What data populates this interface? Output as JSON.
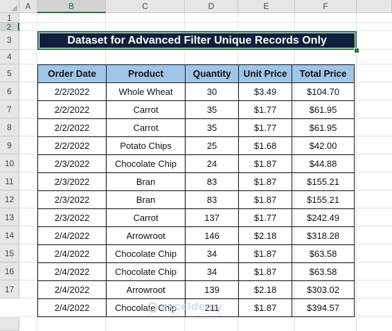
{
  "sheet": {
    "columns": [
      "A",
      "B",
      "C",
      "D",
      "E",
      "F"
    ],
    "selected_column": "B",
    "rows": [
      "1",
      "2",
      "3",
      "4",
      "5",
      "6",
      "7",
      "8",
      "9",
      "10",
      "11",
      "12",
      "13",
      "14",
      "15",
      "16",
      "17"
    ],
    "selected_row": "2"
  },
  "title": "Dataset for Advanced Filter Unique Records Only",
  "table": {
    "headers": [
      "Order Date",
      "Product",
      "Quantity",
      "Unit Price",
      "Total Price"
    ],
    "rows": [
      [
        "2/2/2022",
        "Whole Wheat",
        "30",
        "$3.49",
        "$104.70"
      ],
      [
        "2/2/2022",
        "Carrot",
        "35",
        "$1.77",
        "$61.95"
      ],
      [
        "2/2/2022",
        "Carrot",
        "35",
        "$1.77",
        "$61.95"
      ],
      [
        "2/2/2022",
        "Potato Chips",
        "25",
        "$1.68",
        "$42.00"
      ],
      [
        "2/3/2022",
        "Chocolate Chip",
        "24",
        "$1.87",
        "$44.88"
      ],
      [
        "2/3/2022",
        "Bran",
        "83",
        "$1.87",
        "$155.21"
      ],
      [
        "2/3/2022",
        "Bran",
        "83",
        "$1.87",
        "$155.21"
      ],
      [
        "2/3/2022",
        "Carrot",
        "137",
        "$1.77",
        "$242.49"
      ],
      [
        "2/4/2022",
        "Arrowroot",
        "146",
        "$2.18",
        "$318.28"
      ],
      [
        "2/4/2022",
        "Chocolate Chip",
        "34",
        "$1.87",
        "$63.58"
      ],
      [
        "2/4/2022",
        "Chocolate Chip",
        "34",
        "$1.87",
        "$63.58"
      ],
      [
        "2/4/2022",
        "Arrowroot",
        "139",
        "$2.18",
        "$303.02"
      ],
      [
        "2/4/2022",
        "Chocolate Chip",
        "211",
        "$1.87",
        "$394.57"
      ]
    ]
  },
  "watermark": {
    "text": "exceldemy",
    "sub": "EXCEL · DATA · BI"
  }
}
